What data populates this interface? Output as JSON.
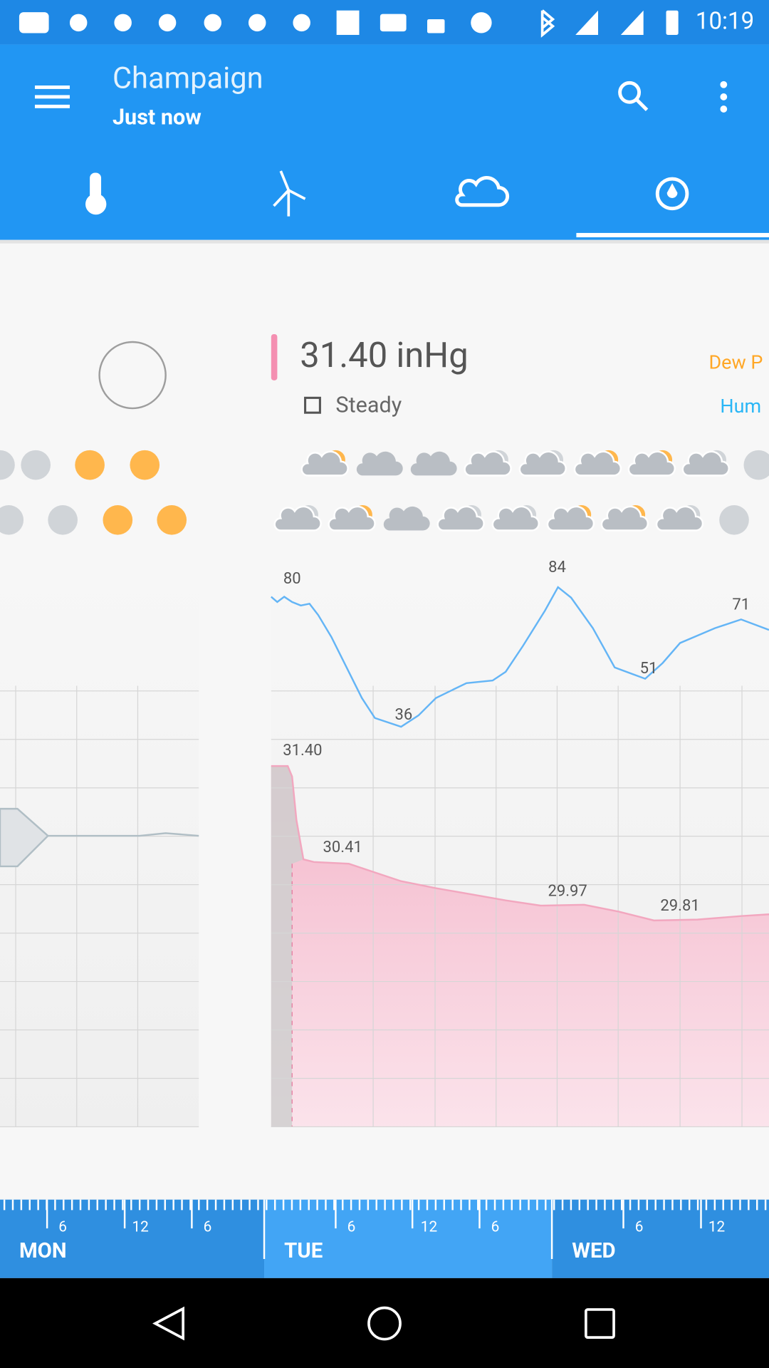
{
  "status_bar": {
    "time": "10:19"
  },
  "app_bar": {
    "title": "Champaign",
    "subtitle": "Just now"
  },
  "current": {
    "pressure": "31.40 inHg",
    "trend": "Steady",
    "dew_point_label": "Dew P",
    "humidity_label": "Hum"
  },
  "graph": {
    "humidity_labels": [
      "80",
      "84",
      "36",
      "51",
      "71"
    ],
    "pressure_labels": [
      "31.40",
      "30.41",
      "29.97",
      "29.81"
    ]
  },
  "timeline": {
    "days": [
      "MON",
      "TUE",
      "WED"
    ],
    "hours": [
      "6",
      "12",
      "6",
      "6",
      "12",
      "6",
      "6",
      "12"
    ]
  }
}
